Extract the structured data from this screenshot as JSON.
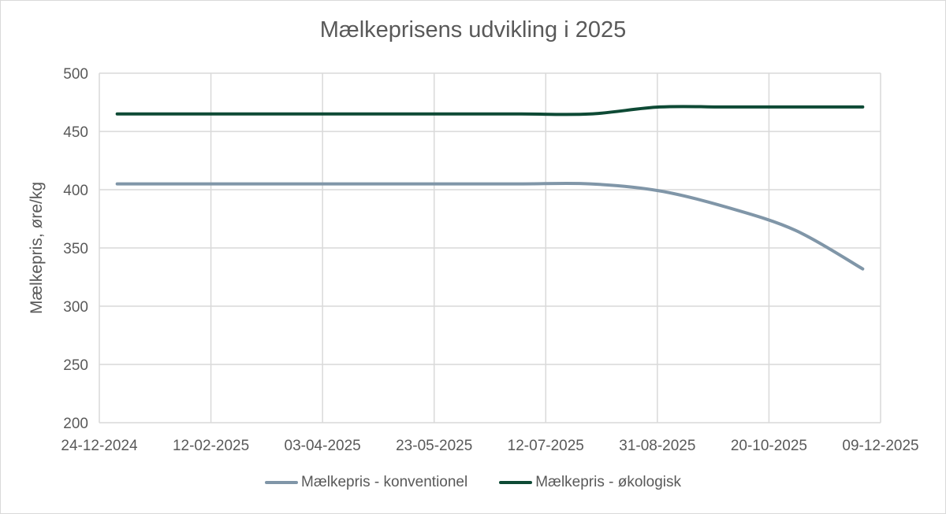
{
  "chart_data": {
    "type": "line",
    "title": "Mælkeprisens udvikling i 2025",
    "xlabel": "",
    "ylabel": "Mælkepris, øre/kg",
    "ylim": [
      200,
      500
    ],
    "yticks": [
      200,
      250,
      300,
      350,
      400,
      450,
      500
    ],
    "xticks": [
      "24-12-2024",
      "12-02-2025",
      "03-04-2025",
      "23-05-2025",
      "12-07-2025",
      "31-08-2025",
      "20-10-2025",
      "09-12-2025"
    ],
    "grid": true,
    "legend_position": "bottom",
    "smooth": true,
    "x": [
      "01-01-2025",
      "01-02-2025",
      "01-03-2025",
      "01-04-2025",
      "01-05-2025",
      "01-06-2025",
      "01-07-2025",
      "01-08-2025",
      "01-09-2025",
      "01-10-2025",
      "01-11-2025",
      "01-12-2025"
    ],
    "series": [
      {
        "name": "Mælkepris - konventionel",
        "color": "#8096a8",
        "values": [
          405,
          405,
          405,
          405,
          405,
          405,
          405,
          405,
          399,
          385,
          365,
          332
        ]
      },
      {
        "name": "Mælkepris - økologisk",
        "color": "#0e4a35",
        "values": [
          465,
          465,
          465,
          465,
          465,
          465,
          465,
          465,
          471,
          471,
          471,
          471
        ]
      }
    ]
  },
  "colors": {
    "grid": "#d9d9d9",
    "text": "#595959",
    "background": "#ffffff"
  }
}
